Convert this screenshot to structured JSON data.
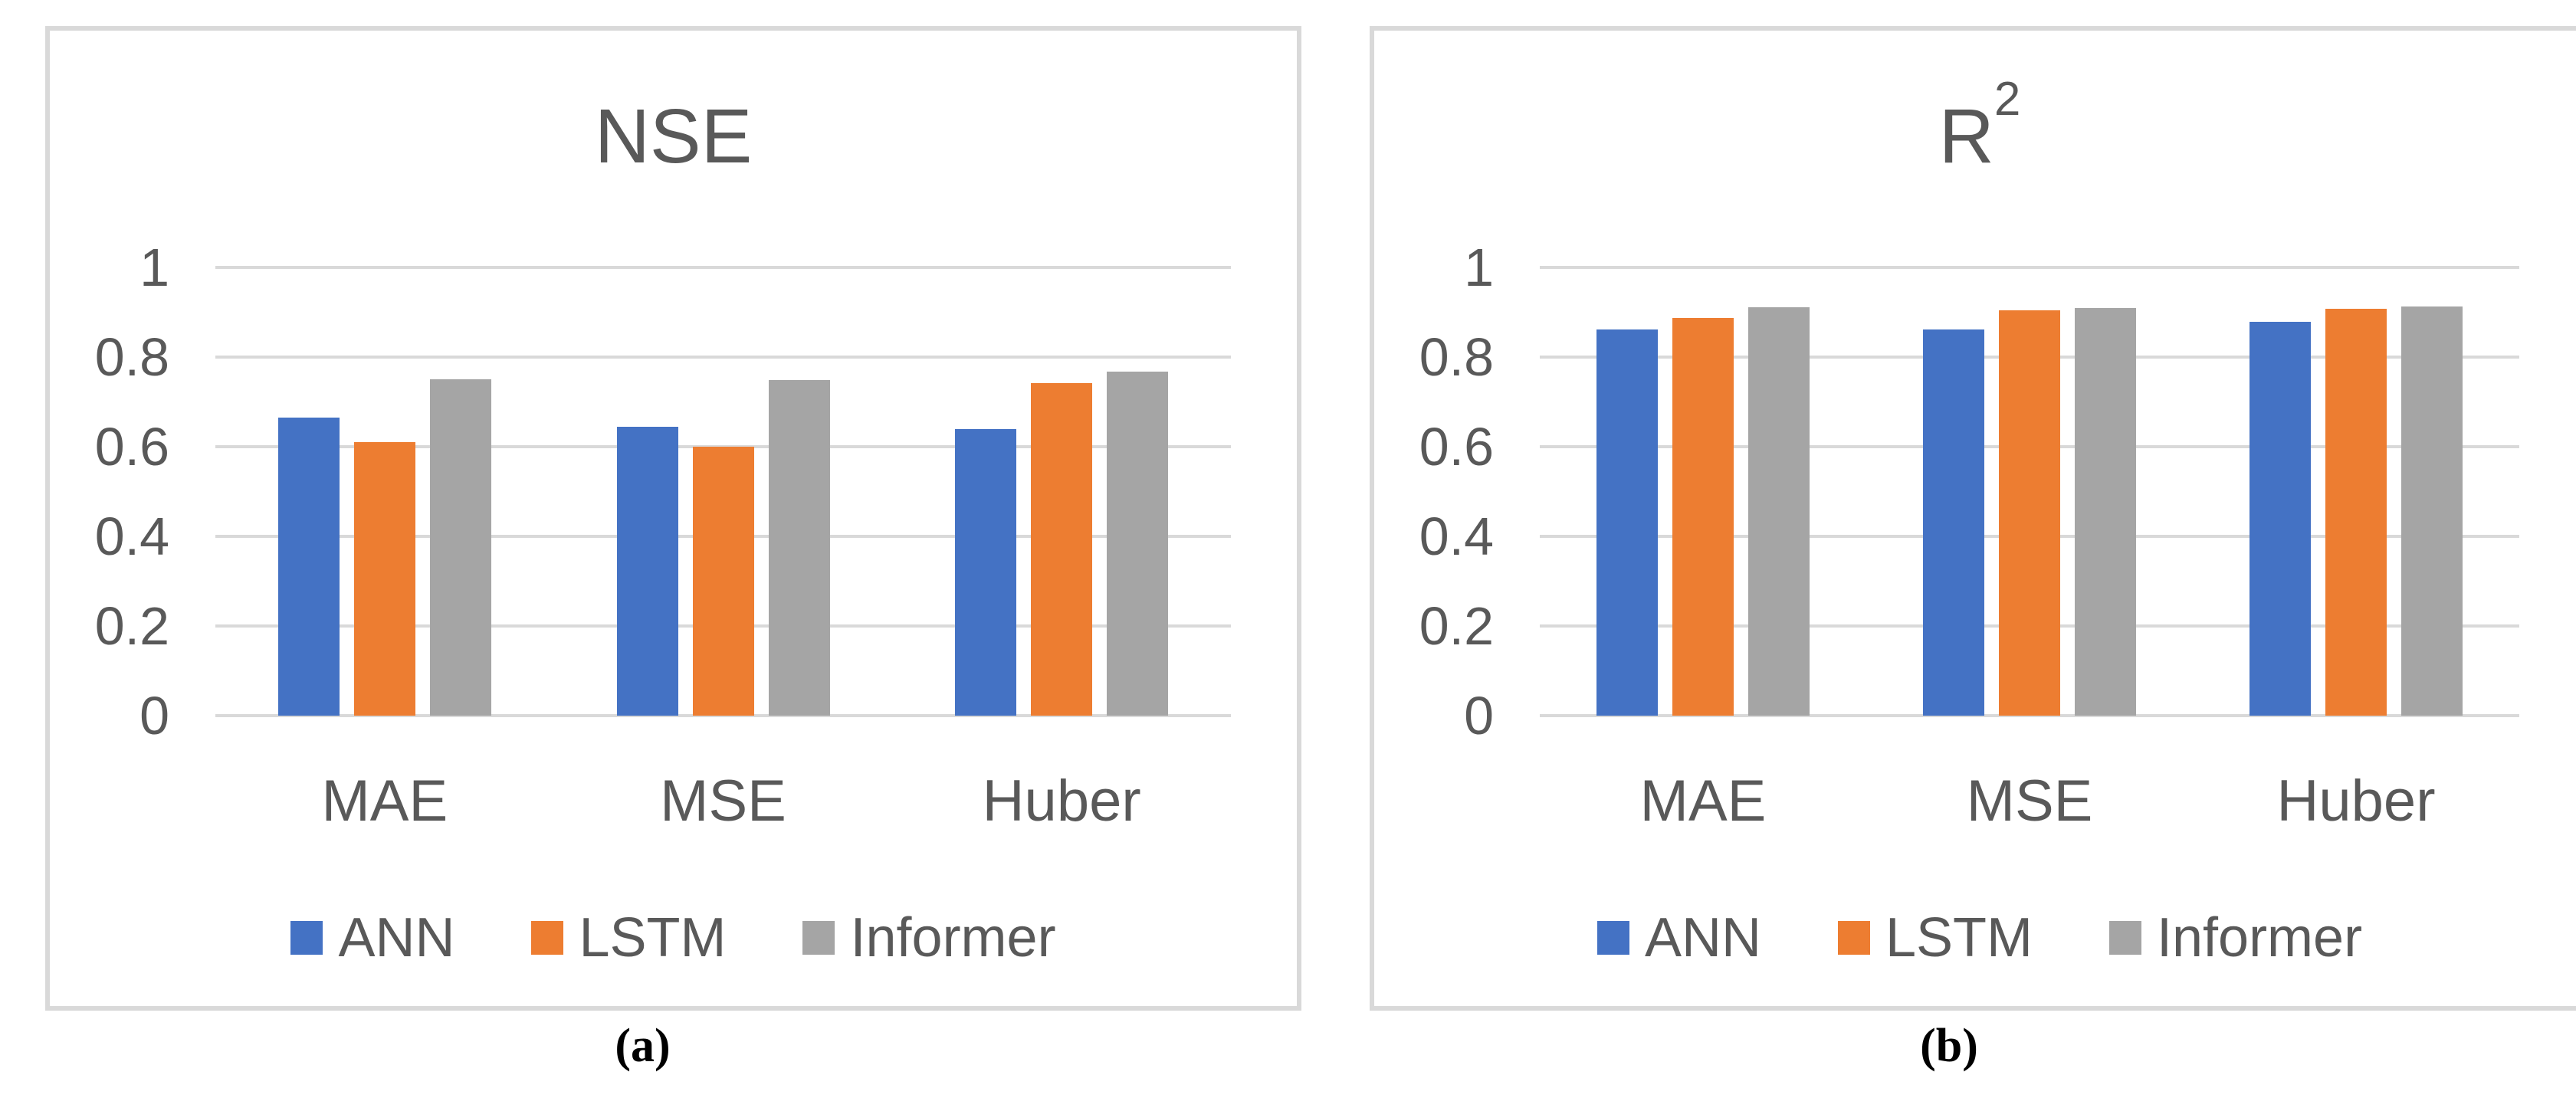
{
  "colors": {
    "text_gray": "#595959",
    "grid": "#D9D9D9",
    "panel_border": "#D9D9D9",
    "ann_blue": "#4472C4",
    "lstm_orange": "#ED7D31",
    "informer_gray": "#A5A5A5"
  },
  "captions": {
    "a": "(a)",
    "b": "(b)"
  },
  "chart_data": [
    {
      "type": "bar",
      "title": "NSE",
      "title_base": "NSE",
      "title_sup": "",
      "categories": [
        "MAE",
        "MSE",
        "Huber"
      ],
      "series": [
        {
          "name": "ANN",
          "color": "#4472C4",
          "values": [
            0.665,
            0.645,
            0.64
          ]
        },
        {
          "name": "LSTM",
          "color": "#ED7D31",
          "values": [
            0.61,
            0.6,
            0.742
          ]
        },
        {
          "name": "Informer",
          "color": "#A5A5A5",
          "values": [
            0.75,
            0.748,
            0.768
          ]
        }
      ],
      "ylim": [
        0,
        1
      ],
      "yticks": [
        {
          "label": "1",
          "value": 1.0
        },
        {
          "label": "0.8",
          "value": 0.8
        },
        {
          "label": "0.6",
          "value": 0.6
        },
        {
          "label": "0.4",
          "value": 0.4
        },
        {
          "label": "0.2",
          "value": 0.2
        },
        {
          "label": "0",
          "value": 0.0
        }
      ],
      "grid": true,
      "legend_position": "bottom"
    },
    {
      "type": "bar",
      "title": "R²",
      "title_base": "R",
      "title_sup": "2",
      "categories": [
        "MAE",
        "MSE",
        "Huber"
      ],
      "series": [
        {
          "name": "ANN",
          "color": "#4472C4",
          "values": [
            0.862,
            0.861,
            0.878
          ]
        },
        {
          "name": "LSTM",
          "color": "#ED7D31",
          "values": [
            0.888,
            0.905,
            0.907
          ]
        },
        {
          "name": "Informer",
          "color": "#A5A5A5",
          "values": [
            0.911,
            0.91,
            0.913
          ]
        }
      ],
      "ylim": [
        0,
        1
      ],
      "yticks": [
        {
          "label": "1",
          "value": 1.0
        },
        {
          "label": "0.8",
          "value": 0.8
        },
        {
          "label": "0.6",
          "value": 0.6
        },
        {
          "label": "0.4",
          "value": 0.4
        },
        {
          "label": "0.2",
          "value": 0.2
        },
        {
          "label": "0",
          "value": 0.0
        }
      ],
      "grid": true,
      "legend_position": "bottom"
    }
  ]
}
